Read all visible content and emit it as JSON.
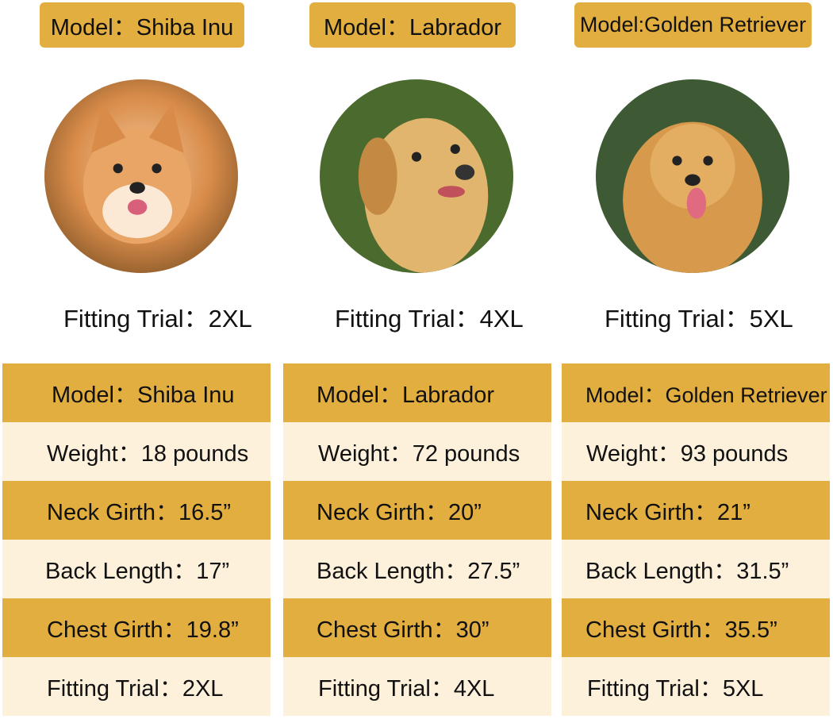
{
  "colors": {
    "gold": "#e2ae40",
    "cream": "#fdf1dc"
  },
  "dogs": [
    {
      "badge": "Model：Shiba Inu",
      "trial": "Fitting Trial：2XL",
      "image": "shiba-inu-photo",
      "rows": [
        "Model：Shiba Inu",
        "Weight：18 pounds",
        "Neck Girth：16.5”",
        "Back Length：17”",
        "Chest Girth：19.8”",
        "Fitting Trial：2XL"
      ]
    },
    {
      "badge": "Model：Labrador",
      "trial": "Fitting Trial：4XL",
      "image": "labrador-photo",
      "rows": [
        "Model：Labrador",
        "Weight：72 pounds",
        "Neck Girth：20”",
        "Back Length：27.5”",
        "Chest Girth：30”",
        "Fitting Trial：4XL"
      ]
    },
    {
      "badge": "Model:Golden Retriever",
      "trial": "Fitting Trial：5XL",
      "image": "golden-retriever-photo",
      "rows": [
        "Model：Golden Retriever",
        "Weight：93 pounds",
        "Neck Girth：21”",
        "Back Length：31.5”",
        "Chest Girth：35.5”",
        "Fitting Trial：5XL"
      ]
    }
  ]
}
